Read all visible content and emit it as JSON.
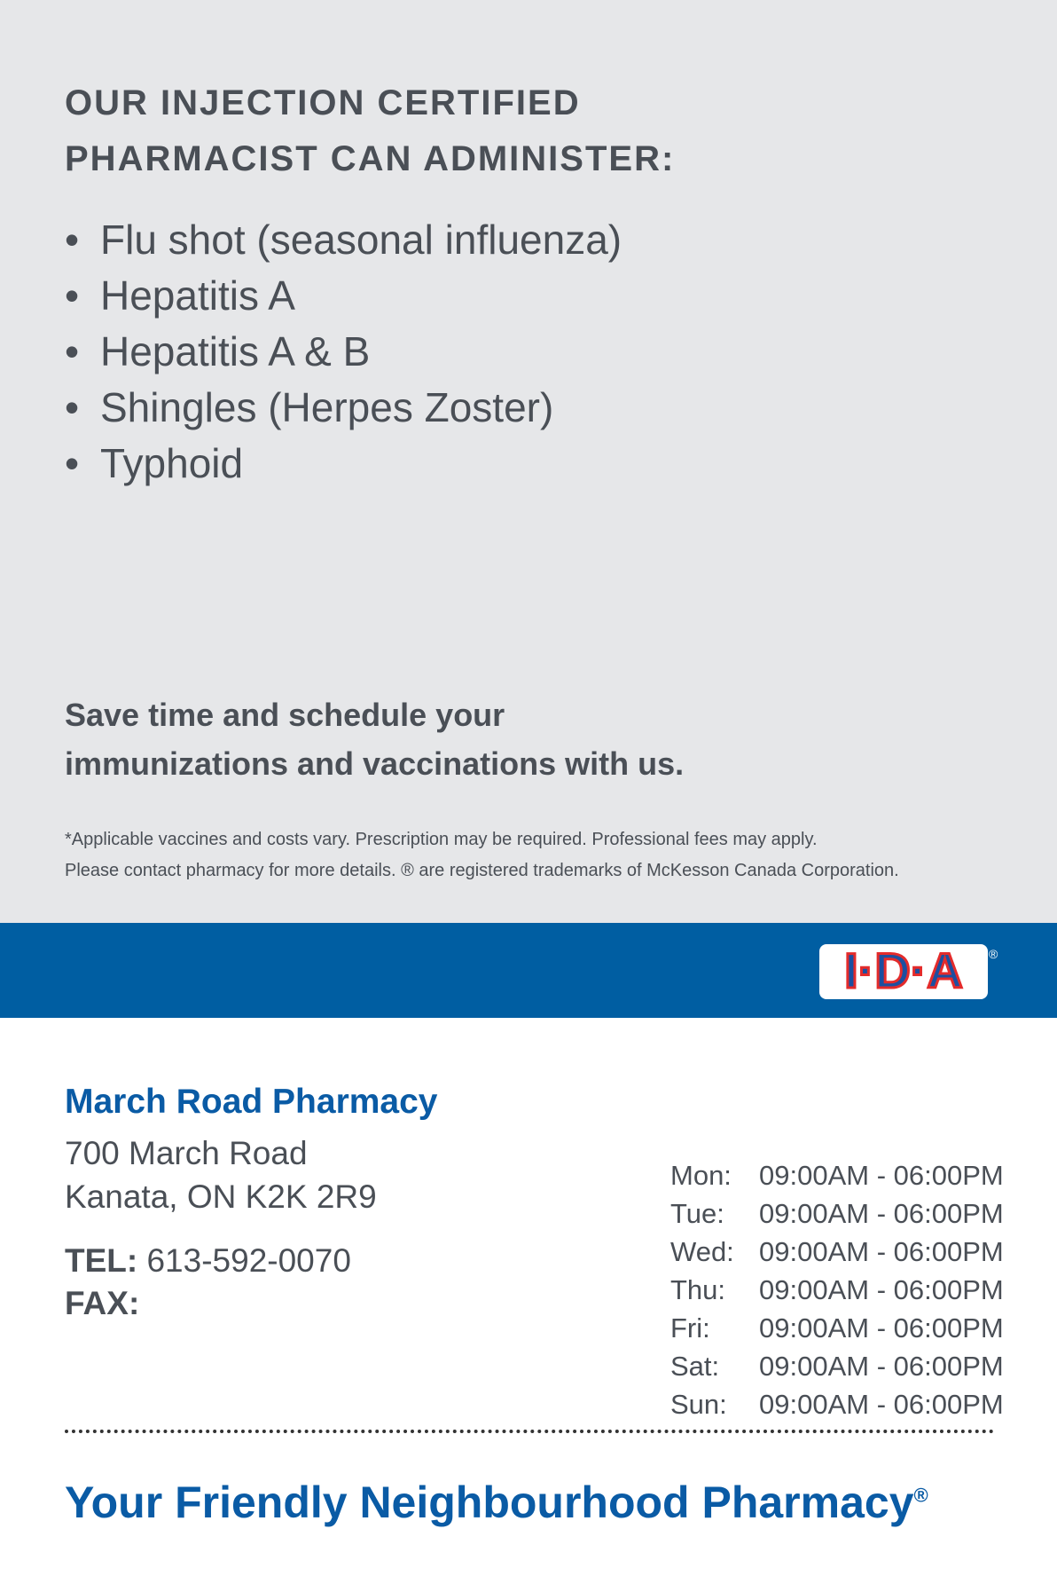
{
  "heading": {
    "lines": [
      "OUR INJECTION CERTIFIED",
      "PHARMACIST CAN ADMINISTER:"
    ]
  },
  "services": [
    "Flu shot (seasonal influenza)",
    "Hepatitis A",
    "Hepatitis A & B",
    "Shingles (Herpes Zoster)",
    "Typhoid"
  ],
  "cta": {
    "lines": [
      "Save time and schedule your",
      "immunizations and vaccinations with us."
    ]
  },
  "disclaimer": {
    "lines": [
      "*Applicable vaccines and costs vary. Prescription may be required. Professional fees may apply.",
      "Please contact pharmacy for more details. ® are registered trademarks of McKesson Canada Corporation."
    ]
  },
  "logo": {
    "text": "I·D·A",
    "mark": "®"
  },
  "pharmacy": {
    "name": "March Road Pharmacy",
    "address": [
      "700 March Road",
      "Kanata, ON K2K 2R9"
    ],
    "tel_label": "TEL:",
    "tel": "613-592-0070",
    "fax_label": "FAX:"
  },
  "hours": [
    [
      "Mon:",
      "09:00AM - 06:00PM"
    ],
    [
      "Tue:",
      "09:00AM - 06:00PM"
    ],
    [
      "Wed:",
      "09:00AM - 06:00PM"
    ],
    [
      "Thu:",
      "09:00AM - 06:00PM"
    ],
    [
      "Fri:",
      "09:00AM - 06:00PM"
    ],
    [
      "Sat:",
      "09:00AM - 06:00PM"
    ],
    [
      "Sun:",
      "09:00AM - 06:00PM"
    ]
  ],
  "tagline": {
    "text": "Your Friendly Neighbourhood Pharmacy",
    "mark": "®"
  }
}
